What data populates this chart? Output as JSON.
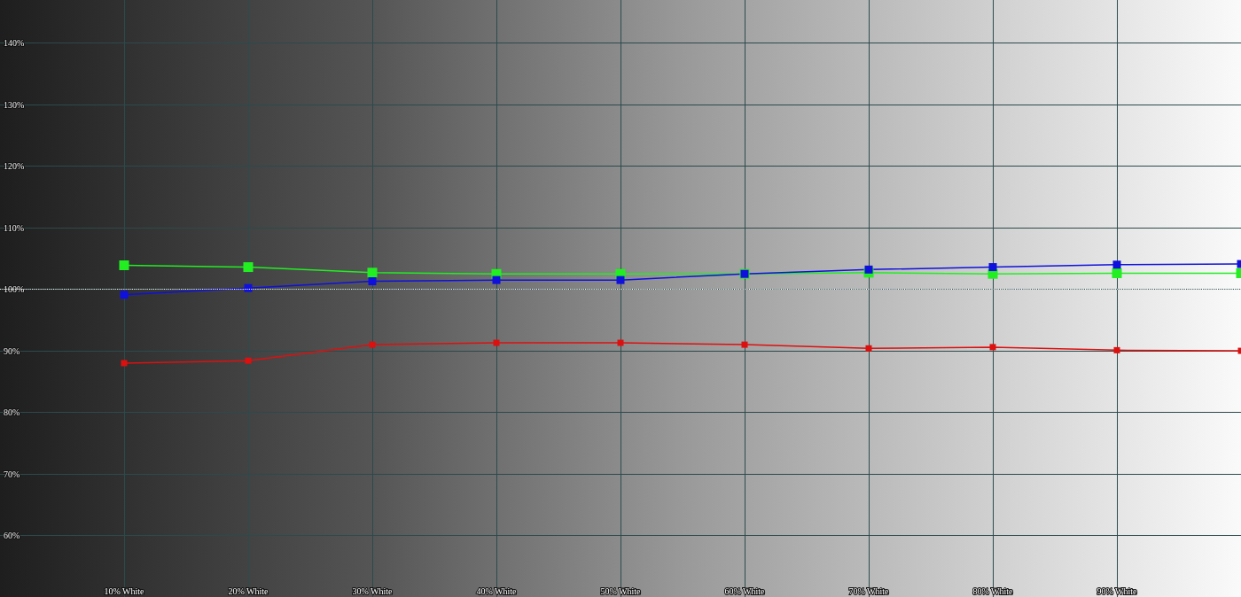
{
  "chart_data": {
    "type": "line",
    "x": [
      10,
      20,
      30,
      40,
      50,
      60,
      70,
      80,
      90,
      100
    ],
    "series": [
      {
        "color": "#22ee22",
        "values": [
          103.9,
          103.6,
          102.7,
          102.5,
          102.5,
          102.5,
          102.7,
          102.5,
          102.6,
          102.6
        ]
      },
      {
        "color": "#1010dd",
        "values": [
          99.1,
          100.2,
          101.3,
          101.5,
          101.5,
          102.5,
          103.2,
          103.6,
          104.0,
          104.1
        ]
      },
      {
        "color": "#dd1010",
        "values": [
          88.0,
          88.4,
          91.0,
          91.3,
          91.3,
          91.0,
          90.4,
          90.6,
          90.1,
          90.0
        ]
      }
    ],
    "xlim": [
      0,
      100
    ],
    "xticks": [
      {
        "value": 10,
        "label": "10% White"
      },
      {
        "value": 20,
        "label": "20% White"
      },
      {
        "value": 30,
        "label": "30% White"
      },
      {
        "value": 40,
        "label": "40% White"
      },
      {
        "value": 50,
        "label": "50% White"
      },
      {
        "value": 60,
        "label": "60% White"
      },
      {
        "value": 70,
        "label": "70% White"
      },
      {
        "value": 80,
        "label": "80% White"
      },
      {
        "value": 90,
        "label": "90% White"
      }
    ],
    "ylim": [
      50,
      147
    ],
    "yticks": [
      {
        "value": 60,
        "label": "60%"
      },
      {
        "value": 70,
        "label": "70%"
      },
      {
        "value": 80,
        "label": "80%"
      },
      {
        "value": 90,
        "label": "90%"
      },
      {
        "value": 100,
        "label": "100%"
      },
      {
        "value": 110,
        "label": "110%"
      },
      {
        "value": 120,
        "label": "120%"
      },
      {
        "value": 130,
        "label": "130%"
      },
      {
        "value": 140,
        "label": "140%"
      }
    ],
    "ref_lines": [
      {
        "axis": "y",
        "value": 100,
        "color": "#ffffff",
        "line_style": "dotted"
      }
    ],
    "grid": true,
    "marker": "square",
    "line_style": "solid"
  }
}
